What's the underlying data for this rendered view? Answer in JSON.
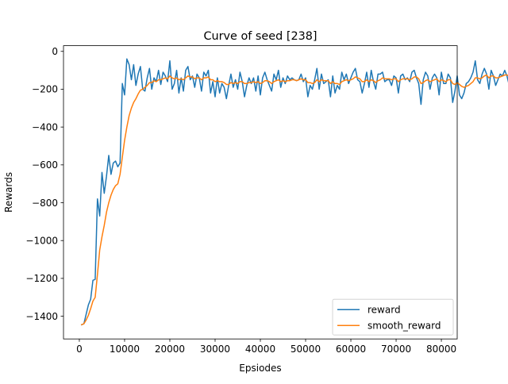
{
  "chart_data": {
    "type": "line",
    "title": "Curve of seed [238]",
    "xlabel": "Epsiodes",
    "ylabel": "Rewards",
    "xlim": [
      -3500,
      83500
    ],
    "ylim": [
      -1520,
      30
    ],
    "xticks": [
      0,
      10000,
      20000,
      30000,
      40000,
      50000,
      60000,
      70000,
      80000
    ],
    "yticks": [
      0,
      -200,
      -400,
      -600,
      -800,
      -1000,
      -1200,
      -1400
    ],
    "grid": false,
    "legend_position": "lower right",
    "x_start": 500,
    "x_step": 500,
    "series": [
      {
        "name": "reward",
        "color": "#1f77b4",
        "values": [
          -1445,
          -1440,
          -1390,
          -1340,
          -1310,
          -1210,
          -1205,
          -780,
          -870,
          -640,
          -750,
          -660,
          -550,
          -650,
          -590,
          -580,
          -610,
          -590,
          -170,
          -230,
          -40,
          -70,
          -150,
          -70,
          -180,
          -120,
          -80,
          -200,
          -210,
          -140,
          -90,
          -200,
          -140,
          -160,
          -100,
          -175,
          -110,
          -130,
          -160,
          -50,
          -200,
          -170,
          -100,
          -220,
          -140,
          -210,
          -100,
          -80,
          -150,
          -130,
          -190,
          -120,
          -140,
          -210,
          -110,
          -130,
          -100,
          -220,
          -160,
          -240,
          -140,
          -220,
          -170,
          -190,
          -250,
          -180,
          -120,
          -190,
          -150,
          -200,
          -110,
          -160,
          -240,
          -180,
          -140,
          -170,
          -140,
          -210,
          -130,
          -230,
          -140,
          -110,
          -150,
          -180,
          -210,
          -120,
          -150,
          -100,
          -190,
          -140,
          -170,
          -130,
          -150,
          -140,
          -150,
          -155,
          -150,
          -120,
          -160,
          -140,
          -240,
          -180,
          -200,
          -150,
          -90,
          -200,
          -120,
          -170,
          -160,
          -150,
          -240,
          -130,
          -220,
          -180,
          -200,
          -110,
          -150,
          -120,
          -170,
          -140,
          -110,
          -90,
          -150,
          -160,
          -220,
          -170,
          -110,
          -190,
          -100,
          -160,
          -200,
          -120,
          -120,
          -110,
          -160,
          -150,
          -150,
          -180,
          -130,
          -140,
          -220,
          -130,
          -120,
          -150,
          -140,
          -160,
          -110,
          -100,
          -140,
          -170,
          -280,
          -150,
          -110,
          -130,
          -200,
          -140,
          -120,
          -140,
          -230,
          -110,
          -170,
          -170,
          -120,
          -140,
          -270,
          -210,
          -130,
          -230,
          -250,
          -220,
          -170,
          -160,
          -140,
          -110,
          -50,
          -150,
          -170,
          -120,
          -90,
          -120,
          -200,
          -100,
          -130,
          -180,
          -150,
          -120,
          -130,
          -100,
          -130,
          -180,
          -120,
          -60,
          -150,
          -120,
          -200,
          -110,
          -110,
          -80,
          -150,
          -140,
          -120,
          -130,
          -150,
          -110,
          -150,
          -180,
          -100,
          -110,
          -120,
          -80,
          -170,
          -160,
          -210,
          -130,
          -90,
          -150,
          -110,
          -130,
          -170,
          -130,
          -220,
          -130,
          -200,
          -130,
          -190,
          -130,
          -120,
          -110,
          -140,
          -100,
          -120,
          -50,
          -200,
          -150,
          -160,
          -140,
          -150,
          -110,
          -110,
          -140,
          -100,
          -190,
          -150,
          -130,
          -190,
          -140,
          -150,
          -140,
          -130,
          -130,
          -140,
          -130,
          -130,
          -120,
          -140,
          -130,
          -80,
          -130,
          -120,
          -150,
          -70,
          -140,
          -90,
          -150,
          -130,
          -110,
          -220,
          -140,
          -140,
          -120,
          -140,
          -160,
          -180,
          -150,
          -120,
          -160,
          -140,
          -120,
          -60,
          -140,
          -110,
          -120,
          -150,
          -170,
          -130,
          -110,
          -140,
          -150,
          -170,
          -120,
          -120,
          -110,
          -160,
          -130,
          -120,
          -150,
          -140,
          -140,
          -100,
          -160,
          -140,
          -150,
          -120,
          -150,
          -110,
          -140,
          -210,
          -130,
          -120,
          -150,
          -110,
          -130,
          -120,
          -120,
          -170,
          -130,
          -150,
          -120,
          -120,
          -130,
          -140,
          -110,
          -100,
          -120,
          -130,
          -160,
          -120,
          -130
        ]
      },
      {
        "name": "smooth_reward",
        "color": "#ff7f0e",
        "values": [
          -1445,
          -1440,
          -1420,
          -1395,
          -1360,
          -1320,
          -1300,
          -1180,
          -1050,
          -980,
          -920,
          -850,
          -800,
          -760,
          -730,
          -710,
          -700,
          -650,
          -560,
          -470,
          -400,
          -340,
          -300,
          -270,
          -250,
          -225,
          -205,
          -200,
          -190,
          -180,
          -165,
          -165,
          -155,
          -160,
          -150,
          -150,
          -145,
          -140,
          -145,
          -130,
          -140,
          -145,
          -140,
          -150,
          -145,
          -150,
          -140,
          -130,
          -135,
          -135,
          -145,
          -140,
          -140,
          -150,
          -140,
          -140,
          -135,
          -150,
          -150,
          -160,
          -155,
          -160,
          -160,
          -165,
          -175,
          -175,
          -165,
          -170,
          -165,
          -170,
          -160,
          -160,
          -170,
          -170,
          -165,
          -165,
          -160,
          -165,
          -160,
          -170,
          -165,
          -155,
          -155,
          -160,
          -170,
          -160,
          -155,
          -150,
          -160,
          -155,
          -160,
          -155,
          -155,
          -150,
          -150,
          -155,
          -150,
          -145,
          -150,
          -150,
          -165,
          -165,
          -170,
          -165,
          -150,
          -160,
          -150,
          -155,
          -155,
          -155,
          -170,
          -160,
          -170,
          -170,
          -175,
          -160,
          -155,
          -150,
          -155,
          -150,
          -145,
          -135,
          -140,
          -145,
          -160,
          -160,
          -150,
          -160,
          -150,
          -155,
          -165,
          -155,
          -150,
          -140,
          -145,
          -145,
          -145,
          -150,
          -145,
          -145,
          -160,
          -150,
          -145,
          -145,
          -145,
          -150,
          -145,
          -135,
          -135,
          -145,
          -170,
          -165,
          -155,
          -150,
          -160,
          -155,
          -150,
          -145,
          -160,
          -150,
          -155,
          -160,
          -150,
          -150,
          -170,
          -175,
          -165,
          -175,
          -185,
          -190,
          -185,
          -180,
          -170,
          -160,
          -140,
          -140,
          -145,
          -140,
          -130,
          -125,
          -140,
          -130,
          -130,
          -140,
          -140,
          -135,
          -130,
          -125,
          -125,
          -130,
          -130,
          -120,
          -125,
          -125,
          -140,
          -135,
          -130,
          -120,
          -125,
          -130,
          -125,
          -125,
          -130,
          -125,
          -130,
          -140,
          -130,
          -125,
          -125,
          -115,
          -125,
          -130,
          -145,
          -145,
          -130,
          -135,
          -130,
          -130,
          -140,
          -140,
          -155,
          -150,
          -160,
          -155,
          -160,
          -150,
          -145,
          -140,
          -140,
          -135,
          -130,
          -115,
          -130,
          -135,
          -140,
          -140,
          -140,
          -135,
          -130,
          -130,
          -125,
          -140,
          -140,
          -140,
          -150,
          -150,
          -150,
          -150,
          -145,
          -145,
          -145,
          -140,
          -140,
          -135,
          -135,
          -135,
          -125,
          -125,
          -125,
          -130,
          -120,
          -125,
          -115,
          -125,
          -125,
          -125,
          -140,
          -140,
          -140,
          -135,
          -135,
          -140,
          -145,
          -145,
          -140,
          -140,
          -140,
          -135,
          -120,
          -125,
          -120,
          -120,
          -125,
          -135,
          -135,
          -130,
          -135,
          -135,
          -140,
          -135,
          -135,
          -130,
          -135,
          -135,
          -130,
          -130,
          -135,
          -135,
          -130,
          -135,
          -135,
          -140,
          -135,
          -135,
          -130,
          -135,
          -150,
          -145,
          -140,
          -140,
          -135,
          -135,
          -130,
          -130,
          -135,
          -135,
          -140,
          -135,
          -130,
          -130,
          -135,
          -130,
          -125,
          -125,
          -125,
          -135,
          -130,
          -130
        ]
      }
    ]
  }
}
